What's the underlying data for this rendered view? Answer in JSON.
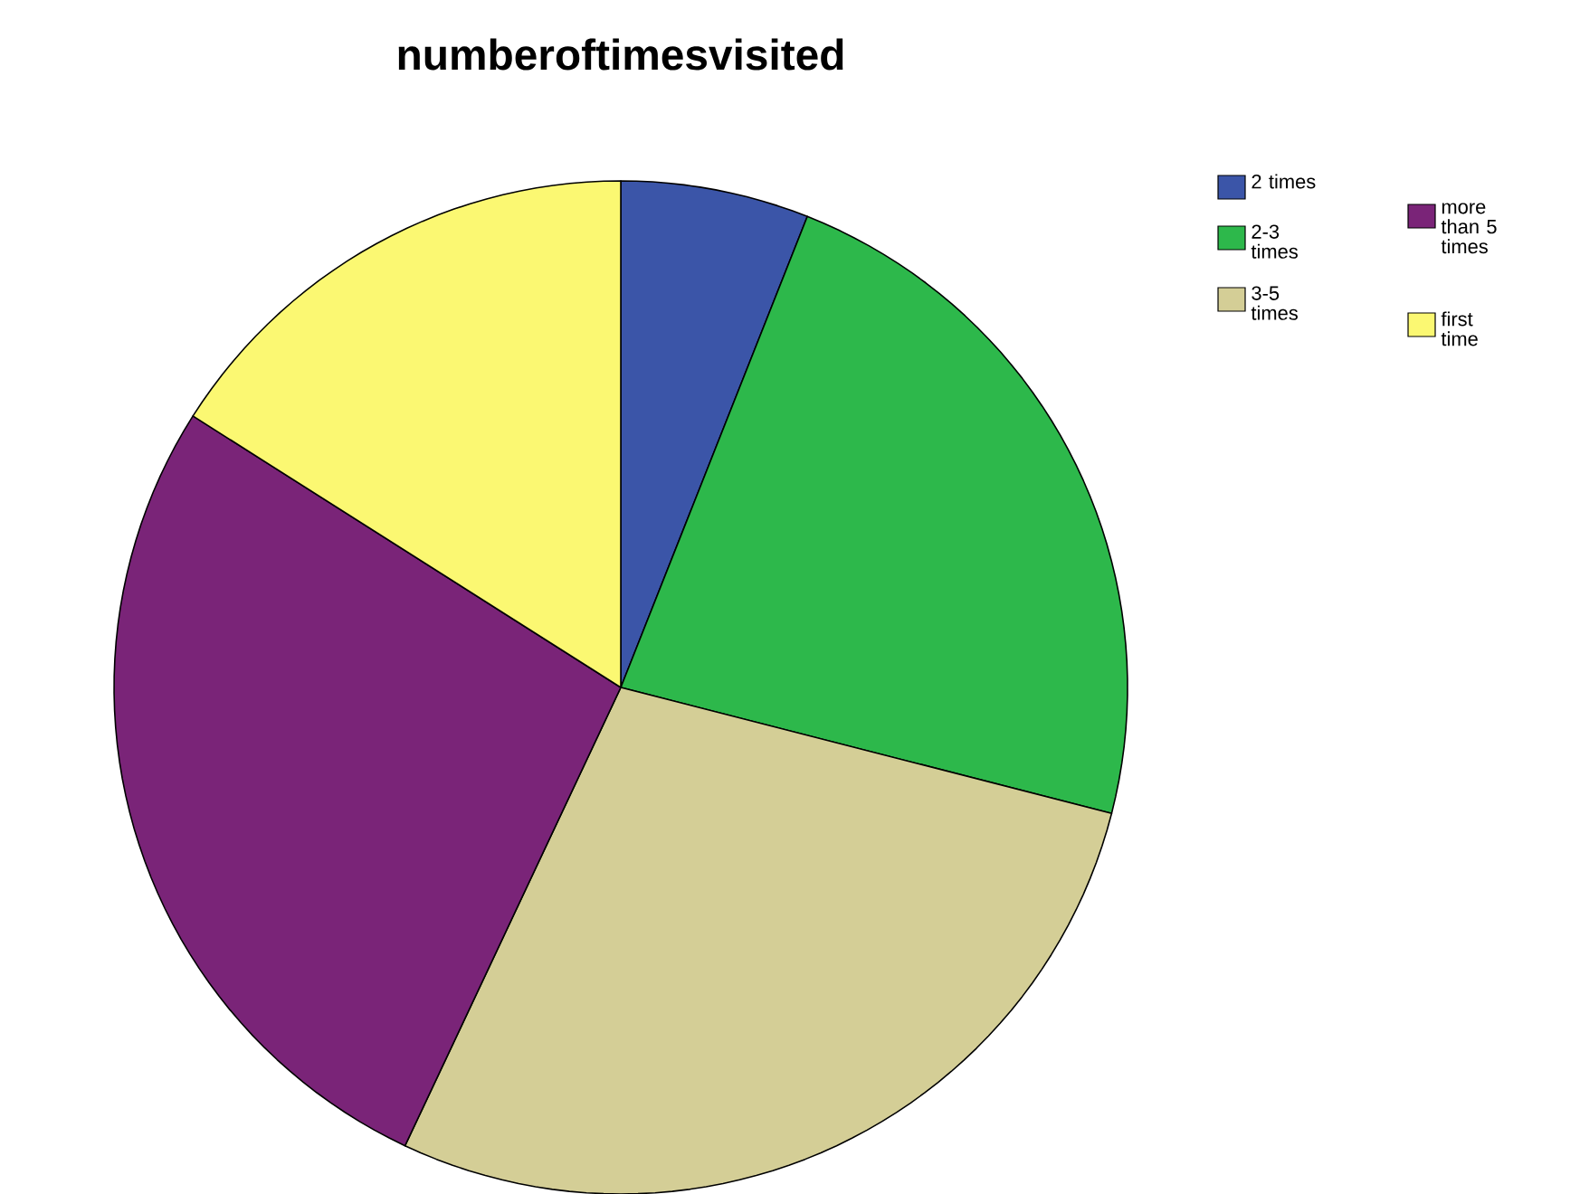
{
  "chart_data": {
    "type": "pie",
    "title": "numberoftimesvisited",
    "categories": [
      "2 times",
      "2-3 times",
      "3-5 times",
      "more than 5 times",
      "first time"
    ],
    "values": [
      6,
      23,
      28,
      27,
      16
    ],
    "colors": [
      "#3b55a8",
      "#2db84b",
      "#d4ce96",
      "#7a2478",
      "#fbf872"
    ],
    "legend": "top right"
  }
}
